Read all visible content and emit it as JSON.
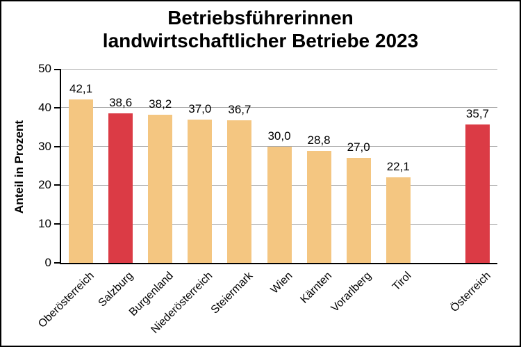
{
  "title": {
    "line1": "Betriebsführerinnen",
    "line2": "landwirtschaftlicher Betriebe 2023"
  },
  "chart_data": {
    "type": "bar",
    "title": "Betriebsführerinnen landwirtschaftlicher Betriebe 2023",
    "xlabel": "",
    "ylabel": "Anteil in Prozent",
    "ylim": [
      0,
      50
    ],
    "yticks": [
      0,
      10,
      20,
      30,
      40,
      50
    ],
    "grid": "horizontal-gray",
    "legend": "none",
    "decimal_separator": ",",
    "slots": 11,
    "bars": [
      {
        "label": "Oberösterreich",
        "value": 42.1,
        "display": "42,1",
        "highlight": false,
        "slot": 0
      },
      {
        "label": "Salzburg",
        "value": 38.6,
        "display": "38,6",
        "highlight": true,
        "slot": 1
      },
      {
        "label": "Burgenland",
        "value": 38.2,
        "display": "38,2",
        "highlight": false,
        "slot": 2
      },
      {
        "label": "Niederösterreich",
        "value": 37.0,
        "display": "37,0",
        "highlight": false,
        "slot": 3
      },
      {
        "label": "Steiermark",
        "value": 36.7,
        "display": "36,7",
        "highlight": false,
        "slot": 4
      },
      {
        "label": "Wien",
        "value": 30.0,
        "display": "30,0",
        "highlight": false,
        "slot": 5
      },
      {
        "label": "Kärnten",
        "value": 28.8,
        "display": "28,8",
        "highlight": false,
        "slot": 6
      },
      {
        "label": "Vorarlberg",
        "value": 27.0,
        "display": "27,0",
        "highlight": false,
        "slot": 7
      },
      {
        "label": "Tirol",
        "value": 22.1,
        "display": "22,1",
        "highlight": false,
        "slot": 8
      },
      {
        "label": "Österreich",
        "value": 35.7,
        "display": "35,7",
        "highlight": true,
        "slot": 10
      }
    ],
    "colors": {
      "bar_default": "#F4C681",
      "bar_highlight": "#DB3B45",
      "gridline": "#A8A8A8",
      "axis": "#000000",
      "text": "#000000",
      "background": "#FFFFFF",
      "border": "#000000"
    }
  }
}
